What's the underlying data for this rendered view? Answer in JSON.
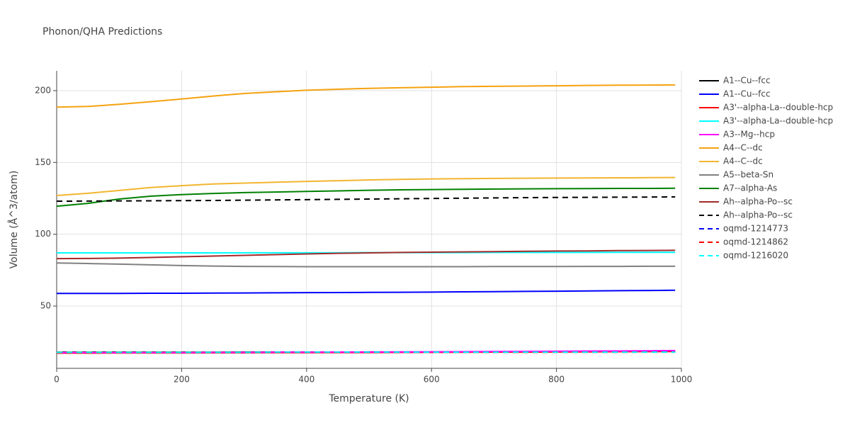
{
  "chart_data": {
    "type": "line",
    "title": "Phonon/QHA Predictions",
    "x_label": "Temperature (K)",
    "y_label": "Volume (Å^3/atom)",
    "x": [
      0,
      50,
      100,
      150,
      200,
      250,
      300,
      350,
      400,
      450,
      500,
      550,
      600,
      650,
      700,
      750,
      800,
      850,
      900,
      950,
      990
    ],
    "xlim": [
      0,
      1000
    ],
    "xticks": [
      0,
      200,
      400,
      600,
      800,
      1000
    ],
    "ylim": [
      6.6,
      213.8
    ],
    "yticks": [
      50,
      100,
      150,
      200
    ],
    "grid": true,
    "series": [
      {
        "name": "A1--Cu--fcc",
        "color": "#000000",
        "dash": false,
        "values": [
          17.8,
          17.8,
          17.8,
          17.8,
          17.8,
          17.8,
          17.9,
          17.9,
          17.9,
          17.9,
          18.0,
          18.0,
          18.0,
          18.1,
          18.1,
          18.1,
          18.2,
          18.2,
          18.3,
          18.3,
          18.4
        ]
      },
      {
        "name": "A1--Cu--fcc",
        "color": "#0000ff",
        "dash": false,
        "values": [
          58.8,
          58.8,
          58.8,
          58.9,
          58.9,
          59.0,
          59.1,
          59.2,
          59.3,
          59.4,
          59.5,
          59.6,
          59.7,
          59.9,
          60.0,
          60.2,
          60.3,
          60.5,
          60.7,
          60.8,
          61.0
        ]
      },
      {
        "name": "A3'--alpha-La--double-hcp",
        "color": "#ff0000",
        "dash": false,
        "values": [
          17.2,
          17.2,
          17.3,
          17.3,
          17.3,
          17.4,
          17.4,
          17.5,
          17.5,
          17.6,
          17.6,
          17.7,
          17.7,
          17.8,
          17.9,
          17.9,
          18.0,
          18.1,
          18.2,
          18.3,
          18.4
        ]
      },
      {
        "name": "A3'--alpha-La--double-hcp",
        "color": "#00ffff",
        "dash": false,
        "values": [
          87.0,
          87.0,
          87.0,
          87.0,
          87.0,
          87.0,
          87.1,
          87.1,
          87.1,
          87.1,
          87.2,
          87.2,
          87.2,
          87.2,
          87.3,
          87.3,
          87.3,
          87.3,
          87.4,
          87.4,
          87.4
        ]
      },
      {
        "name": "A3--Mg--hcp",
        "color": "#ff00ff",
        "dash": false,
        "values": [
          17.5,
          17.5,
          17.5,
          17.6,
          17.6,
          17.7,
          17.7,
          17.8,
          17.8,
          17.9,
          17.9,
          18.0,
          18.1,
          18.2,
          18.3,
          18.4,
          18.5,
          18.6,
          18.7,
          18.8,
          19.0
        ]
      },
      {
        "name": "A4--C--dc",
        "color": "#f5a20f",
        "dash": false,
        "values": [
          188.5,
          189.0,
          190.5,
          192.3,
          194.2,
          196.2,
          198.0,
          199.2,
          200.3,
          201.0,
          201.6,
          202.0,
          202.4,
          202.8,
          203.0,
          203.2,
          203.4,
          203.6,
          203.8,
          203.9,
          204.0
        ]
      },
      {
        "name": "A4--C--dc",
        "color": "#f2b530",
        "dash": false,
        "values": [
          127.0,
          128.5,
          130.5,
          132.5,
          133.8,
          135.0,
          135.6,
          136.2,
          136.8,
          137.3,
          137.8,
          138.2,
          138.5,
          138.7,
          138.9,
          139.0,
          139.1,
          139.2,
          139.3,
          139.4,
          139.5
        ]
      },
      {
        "name": "A5--beta-Sn",
        "color": "#808080",
        "dash": false,
        "values": [
          80.0,
          79.6,
          79.2,
          78.7,
          78.2,
          77.8,
          77.6,
          77.5,
          77.4,
          77.4,
          77.4,
          77.4,
          77.4,
          77.4,
          77.5,
          77.5,
          77.5,
          77.6,
          77.6,
          77.7,
          77.7
        ]
      },
      {
        "name": "A7--alpha-As",
        "color": "#008000",
        "dash": false,
        "values": [
          119.5,
          121.5,
          124.5,
          126.5,
          127.6,
          128.4,
          129.0,
          129.4,
          129.8,
          130.2,
          130.6,
          130.9,
          131.1,
          131.3,
          131.5,
          131.6,
          131.7,
          131.8,
          131.9,
          131.9,
          132.0
        ]
      },
      {
        "name": "Ah--alpha-Po--sc",
        "color": "#a52a2a",
        "dash": false,
        "values": [
          83.0,
          83.1,
          83.4,
          83.8,
          84.3,
          84.8,
          85.3,
          85.8,
          86.3,
          86.7,
          87.0,
          87.3,
          87.5,
          87.7,
          87.9,
          88.1,
          88.3,
          88.4,
          88.6,
          88.7,
          88.8
        ]
      },
      {
        "name": "Ah--alpha-Po--sc",
        "color": "#000000",
        "dash": true,
        "values": [
          123.0,
          123.1,
          123.2,
          123.3,
          123.4,
          123.5,
          123.7,
          123.9,
          124.1,
          124.3,
          124.5,
          124.7,
          124.9,
          125.1,
          125.3,
          125.5,
          125.6,
          125.7,
          125.8,
          125.9,
          126.0
        ]
      },
      {
        "name": "oqmd-1214773",
        "color": "#0000ff",
        "dash": true,
        "values": [
          17.6,
          17.6,
          17.6,
          17.6,
          17.6,
          17.7,
          17.7,
          17.7,
          17.7,
          17.7,
          17.8,
          17.8,
          17.8,
          17.8,
          17.8,
          17.9,
          17.9,
          17.9,
          17.9,
          18.0,
          18.0
        ]
      },
      {
        "name": "oqmd-1214862",
        "color": "#ff0000",
        "dash": true,
        "values": [
          17.4,
          17.4,
          17.4,
          17.4,
          17.5,
          17.5,
          17.5,
          17.5,
          17.6,
          17.6,
          17.6,
          17.6,
          17.7,
          17.7,
          17.7,
          17.7,
          17.8,
          17.8,
          17.8,
          17.9,
          17.9
        ]
      },
      {
        "name": "oqmd-1216020",
        "color": "#00ffff",
        "dash": true,
        "values": [
          17.7,
          17.7,
          17.7,
          17.7,
          17.7,
          17.7,
          17.7,
          17.8,
          17.8,
          17.8,
          17.8,
          17.8,
          17.8,
          17.8,
          17.8,
          17.9,
          17.9,
          17.9,
          17.9,
          17.9,
          17.9
        ]
      }
    ]
  }
}
